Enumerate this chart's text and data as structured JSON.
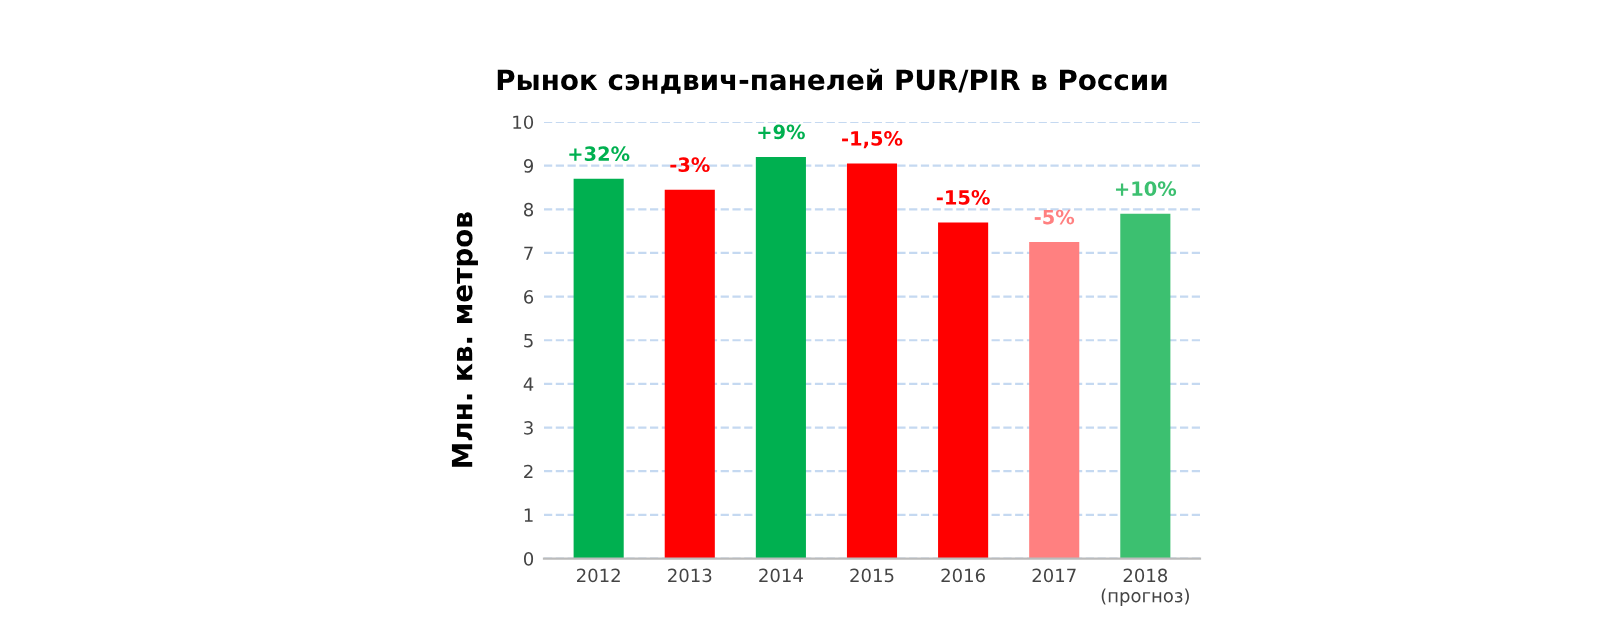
{
  "chart_data": {
    "type": "bar",
    "title": "Рынок сэндвич-панелей PUR/PIR в России",
    "ylabel": "Млн. кв. метров",
    "categories": [
      "2012",
      "2013",
      "2014",
      "2015",
      "2016",
      "2017",
      "2018\n(прогноз)"
    ],
    "values": [
      8.7,
      8.45,
      9.2,
      9.05,
      7.7,
      7.25,
      7.9
    ],
    "colors": [
      "#00b050",
      "#ff0000",
      "#00b050",
      "#ff0000",
      "#ff0000",
      "#ff8080",
      "#3cc070"
    ],
    "annotations": [
      {
        "text": "+32%",
        "x": "2012",
        "y": 8.7
      },
      {
        "text": "-3%",
        "x": "2013",
        "y": 8.45
      },
      {
        "text": "+9%",
        "x": "2014",
        "y": 9.2
      },
      {
        "text": "-1,5%",
        "x": "2015",
        "y": 9.05
      },
      {
        "text": "-15%",
        "x": "2016",
        "y": 7.7
      },
      {
        "text": "-5%",
        "x": "2017",
        "y": 7.25
      },
      {
        "text": "+10%",
        "x": "2018\n(прогноз)",
        "y": 7.9
      }
    ],
    "ylim": [
      0,
      10
    ],
    "yticks": [
      0,
      1,
      2,
      3,
      4,
      5,
      6,
      7,
      8,
      9,
      10
    ],
    "grid": "y"
  }
}
